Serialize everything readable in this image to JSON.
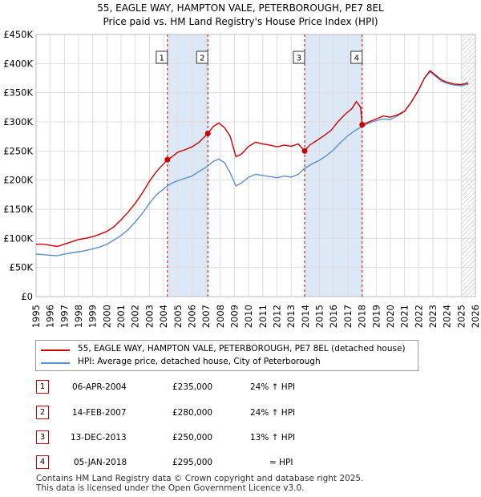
{
  "title_line1": "55, EAGLE WAY, HAMPTON VALE, PETERBOROUGH, PE7 8EL",
  "title_line2": "Price paid vs. HM Land Registry's House Price Index (HPI)",
  "colors": {
    "property": "#cc0000",
    "hpi": "#5b8fcc",
    "shade": "#dde8f6",
    "grid": "#dddddd",
    "marker_line": "#cc0000"
  },
  "chart_data": {
    "type": "line",
    "xlim": [
      1995,
      2026
    ],
    "ylim": [
      0,
      450000
    ],
    "y_ticks": [
      {
        "value": 0,
        "label": "£0"
      },
      {
        "value": 50000,
        "label": "£50K"
      },
      {
        "value": 100000,
        "label": "£100K"
      },
      {
        "value": 150000,
        "label": "£150K"
      },
      {
        "value": 200000,
        "label": "£200K"
      },
      {
        "value": 250000,
        "label": "£250K"
      },
      {
        "value": 300000,
        "label": "£300K"
      },
      {
        "value": 350000,
        "label": "£350K"
      },
      {
        "value": 400000,
        "label": "£400K"
      },
      {
        "value": 450000,
        "label": "£450K"
      }
    ],
    "x_ticks": [
      "1995",
      "1996",
      "1997",
      "1998",
      "1999",
      "2000",
      "2001",
      "2002",
      "2003",
      "2004",
      "2005",
      "2006",
      "2007",
      "2008",
      "2009",
      "2010",
      "2011",
      "2012",
      "2013",
      "2014",
      "2015",
      "2016",
      "2017",
      "2018",
      "2019",
      "2020",
      "2021",
      "2022",
      "2023",
      "2024",
      "2025",
      "2026"
    ],
    "shaded_ranges": [
      [
        2004.27,
        2007.12
      ],
      [
        2013.95,
        2018.01
      ]
    ],
    "hatch_from": 2025.0,
    "series": [
      {
        "name": "55, EAGLE WAY, HAMPTON VALE, PETERBOROUGH, PE7 8EL (detached house)",
        "color": "#cc0000",
        "points": [
          [
            1995,
            90000
          ],
          [
            1995.5,
            90000
          ],
          [
            1996,
            88000
          ],
          [
            1996.5,
            86000
          ],
          [
            1997,
            90000
          ],
          [
            1997.5,
            94000
          ],
          [
            1998,
            98000
          ],
          [
            1998.5,
            100000
          ],
          [
            1999,
            103000
          ],
          [
            1999.5,
            107000
          ],
          [
            2000,
            112000
          ],
          [
            2000.5,
            120000
          ],
          [
            2001,
            132000
          ],
          [
            2001.5,
            145000
          ],
          [
            2002,
            160000
          ],
          [
            2002.5,
            178000
          ],
          [
            2003,
            198000
          ],
          [
            2003.5,
            215000
          ],
          [
            2004,
            228000
          ],
          [
            2004.27,
            235000
          ],
          [
            2004.6,
            240000
          ],
          [
            2005,
            248000
          ],
          [
            2005.5,
            252000
          ],
          [
            2006,
            257000
          ],
          [
            2006.5,
            265000
          ],
          [
            2007.12,
            280000
          ],
          [
            2007.5,
            292000
          ],
          [
            2007.9,
            298000
          ],
          [
            2008.3,
            290000
          ],
          [
            2008.7,
            275000
          ],
          [
            2009.1,
            240000
          ],
          [
            2009.5,
            245000
          ],
          [
            2010,
            258000
          ],
          [
            2010.5,
            265000
          ],
          [
            2011,
            262000
          ],
          [
            2011.5,
            260000
          ],
          [
            2012,
            257000
          ],
          [
            2012.5,
            260000
          ],
          [
            2013,
            258000
          ],
          [
            2013.5,
            262000
          ],
          [
            2013.95,
            250000
          ],
          [
            2014.3,
            260000
          ],
          [
            2014.8,
            268000
          ],
          [
            2015.3,
            276000
          ],
          [
            2015.8,
            285000
          ],
          [
            2016.3,
            300000
          ],
          [
            2016.8,
            313000
          ],
          [
            2017.3,
            323000
          ],
          [
            2017.6,
            335000
          ],
          [
            2017.9,
            325000
          ],
          [
            2018.01,
            295000
          ],
          [
            2018.5,
            300000
          ],
          [
            2019,
            305000
          ],
          [
            2019.5,
            310000
          ],
          [
            2020,
            308000
          ],
          [
            2020.5,
            312000
          ],
          [
            2021,
            318000
          ],
          [
            2021.5,
            335000
          ],
          [
            2022,
            355000
          ],
          [
            2022.4,
            375000
          ],
          [
            2022.8,
            388000
          ],
          [
            2023.2,
            380000
          ],
          [
            2023.6,
            372000
          ],
          [
            2024,
            368000
          ],
          [
            2024.5,
            365000
          ],
          [
            2025,
            364000
          ],
          [
            2025.5,
            367000
          ]
        ]
      },
      {
        "name": "HPI: Average price, detached house, City of Peterborough",
        "color": "#5b8fcc",
        "points": [
          [
            1995,
            73000
          ],
          [
            1995.5,
            72000
          ],
          [
            1996,
            71000
          ],
          [
            1996.5,
            70000
          ],
          [
            1997,
            73000
          ],
          [
            1997.5,
            75000
          ],
          [
            1998,
            77000
          ],
          [
            1998.5,
            79000
          ],
          [
            1999,
            82000
          ],
          [
            1999.5,
            85000
          ],
          [
            2000,
            90000
          ],
          [
            2000.5,
            97000
          ],
          [
            2001,
            105000
          ],
          [
            2001.5,
            115000
          ],
          [
            2002,
            128000
          ],
          [
            2002.5,
            143000
          ],
          [
            2003,
            160000
          ],
          [
            2003.5,
            175000
          ],
          [
            2004,
            185000
          ],
          [
            2004.27,
            190000
          ],
          [
            2004.6,
            195000
          ],
          [
            2005,
            199000
          ],
          [
            2005.5,
            203000
          ],
          [
            2006,
            207000
          ],
          [
            2006.5,
            215000
          ],
          [
            2007,
            222000
          ],
          [
            2007.5,
            232000
          ],
          [
            2007.9,
            236000
          ],
          [
            2008.3,
            230000
          ],
          [
            2008.7,
            212000
          ],
          [
            2009.1,
            190000
          ],
          [
            2009.5,
            195000
          ],
          [
            2010,
            205000
          ],
          [
            2010.5,
            210000
          ],
          [
            2011,
            208000
          ],
          [
            2011.5,
            206000
          ],
          [
            2012,
            204000
          ],
          [
            2012.5,
            207000
          ],
          [
            2013,
            205000
          ],
          [
            2013.5,
            210000
          ],
          [
            2013.95,
            220000
          ],
          [
            2014.5,
            228000
          ],
          [
            2015,
            234000
          ],
          [
            2015.5,
            242000
          ],
          [
            2016,
            252000
          ],
          [
            2016.5,
            265000
          ],
          [
            2017,
            276000
          ],
          [
            2017.5,
            285000
          ],
          [
            2018,
            292000
          ],
          [
            2018.5,
            298000
          ],
          [
            2019,
            302000
          ],
          [
            2019.5,
            305000
          ],
          [
            2020,
            304000
          ],
          [
            2020.5,
            310000
          ],
          [
            2021,
            318000
          ],
          [
            2021.5,
            335000
          ],
          [
            2022,
            355000
          ],
          [
            2022.4,
            375000
          ],
          [
            2022.8,
            386000
          ],
          [
            2023.2,
            378000
          ],
          [
            2023.6,
            370000
          ],
          [
            2024,
            366000
          ],
          [
            2024.5,
            363000
          ],
          [
            2025,
            362000
          ],
          [
            2025.5,
            365000
          ]
        ]
      }
    ],
    "sales": [
      {
        "label": "1",
        "x": 2004.27,
        "price": 235000
      },
      {
        "label": "2",
        "x": 2007.12,
        "price": 280000
      },
      {
        "label": "3",
        "x": 2013.95,
        "price": 250000
      },
      {
        "label": "4",
        "x": 2018.01,
        "price": 295000
      }
    ]
  },
  "legend": [
    {
      "label": "55, EAGLE WAY, HAMPTON VALE, PETERBOROUGH, PE7 8EL (detached house)",
      "color": "#cc0000"
    },
    {
      "label": "HPI: Average price, detached house, City of Peterborough",
      "color": "#5b8fcc"
    }
  ],
  "transactions": [
    {
      "num": "1",
      "date": "06-APR-2004",
      "price": "£235,000",
      "hpi": "24% ↑ HPI"
    },
    {
      "num": "2",
      "date": "14-FEB-2007",
      "price": "£280,000",
      "hpi": "24% ↑ HPI"
    },
    {
      "num": "3",
      "date": "13-DEC-2013",
      "price": "£250,000",
      "hpi": "13% ↑ HPI"
    },
    {
      "num": "4",
      "date": "05-JAN-2018",
      "price": "£295,000",
      "hpi": "≈ HPI"
    }
  ],
  "footer": {
    "line1": "Contains HM Land Registry data © Crown copyright and database right 2025.",
    "line2": "This data is licensed under the Open Government Licence v3.0."
  }
}
